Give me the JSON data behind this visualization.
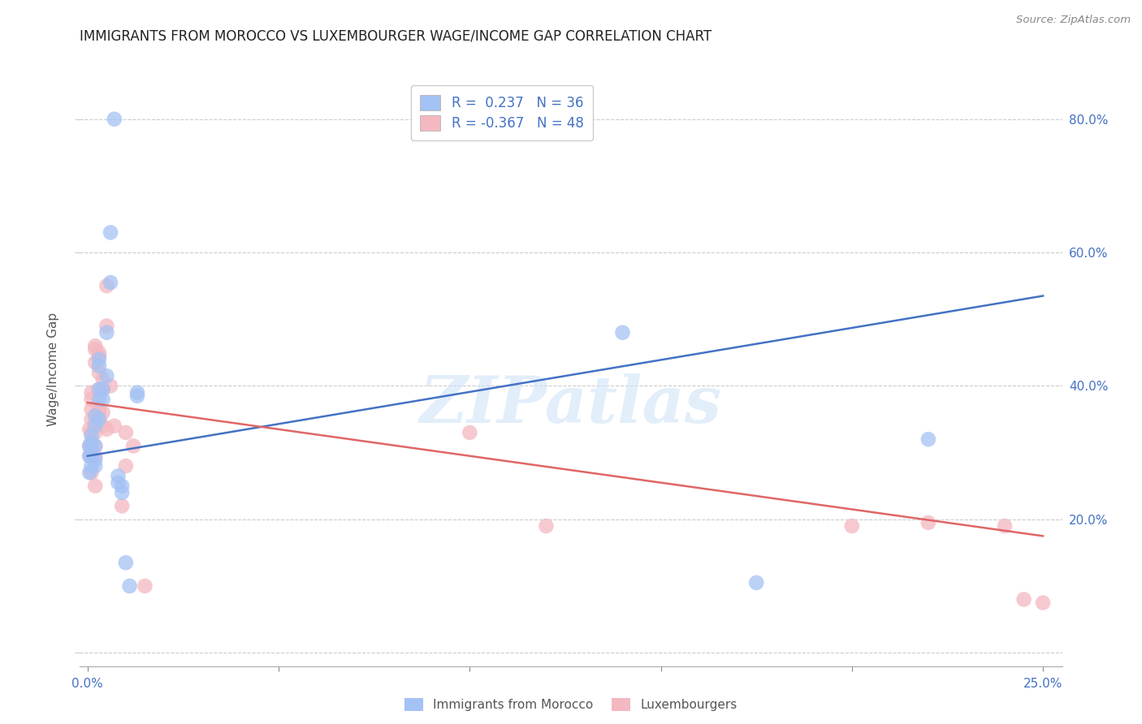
{
  "title": "IMMIGRANTS FROM MOROCCO VS LUXEMBOURGER WAGE/INCOME GAP CORRELATION CHART",
  "source": "Source: ZipAtlas.com",
  "ylabel": "Wage/Income Gap",
  "xlim": [
    -0.002,
    0.255
  ],
  "ylim": [
    -0.02,
    0.87
  ],
  "xticks": [
    0.0,
    0.05,
    0.1,
    0.15,
    0.2,
    0.25
  ],
  "xticklabels": [
    "0.0%",
    "",
    "",
    "",
    "",
    "25.0%"
  ],
  "yticks": [
    0.0,
    0.2,
    0.4,
    0.6,
    0.8
  ],
  "yticklabels": [
    "",
    "20.0%",
    "40.0%",
    "60.0%",
    "80.0%"
  ],
  "watermark": "ZIPatlas",
  "blue_color": "#a4c2f4",
  "pink_color": "#f4b8c1",
  "line_blue": "#4472c4",
  "line_pink": "#e06666",
  "tick_color": "#4472c4",
  "text_color": "#4472c4",
  "blue_scatter": [
    [
      0.0005,
      0.295
    ],
    [
      0.0005,
      0.27
    ],
    [
      0.0005,
      0.31
    ],
    [
      0.001,
      0.315
    ],
    [
      0.001,
      0.325
    ],
    [
      0.001,
      0.28
    ],
    [
      0.001,
      0.305
    ],
    [
      0.001,
      0.295
    ],
    [
      0.002,
      0.34
    ],
    [
      0.002,
      0.355
    ],
    [
      0.002,
      0.31
    ],
    [
      0.002,
      0.28
    ],
    [
      0.002,
      0.29
    ],
    [
      0.003,
      0.43
    ],
    [
      0.003,
      0.38
    ],
    [
      0.003,
      0.395
    ],
    [
      0.003,
      0.35
    ],
    [
      0.003,
      0.44
    ],
    [
      0.004,
      0.395
    ],
    [
      0.004,
      0.38
    ],
    [
      0.005,
      0.48
    ],
    [
      0.005,
      0.415
    ],
    [
      0.006,
      0.555
    ],
    [
      0.006,
      0.63
    ],
    [
      0.007,
      0.8
    ],
    [
      0.008,
      0.265
    ],
    [
      0.008,
      0.255
    ],
    [
      0.009,
      0.24
    ],
    [
      0.009,
      0.25
    ],
    [
      0.01,
      0.135
    ],
    [
      0.011,
      0.1
    ],
    [
      0.013,
      0.39
    ],
    [
      0.013,
      0.385
    ],
    [
      0.14,
      0.48
    ],
    [
      0.175,
      0.105
    ],
    [
      0.22,
      0.32
    ]
  ],
  "pink_scatter": [
    [
      0.0005,
      0.31
    ],
    [
      0.0005,
      0.295
    ],
    [
      0.0005,
      0.335
    ],
    [
      0.001,
      0.365
    ],
    [
      0.001,
      0.35
    ],
    [
      0.001,
      0.33
    ],
    [
      0.001,
      0.38
    ],
    [
      0.001,
      0.39
    ],
    [
      0.001,
      0.295
    ],
    [
      0.001,
      0.27
    ],
    [
      0.001,
      0.305
    ],
    [
      0.002,
      0.46
    ],
    [
      0.002,
      0.455
    ],
    [
      0.002,
      0.435
    ],
    [
      0.002,
      0.355
    ],
    [
      0.002,
      0.345
    ],
    [
      0.002,
      0.33
    ],
    [
      0.002,
      0.31
    ],
    [
      0.002,
      0.295
    ],
    [
      0.002,
      0.25
    ],
    [
      0.003,
      0.45
    ],
    [
      0.003,
      0.445
    ],
    [
      0.003,
      0.42
    ],
    [
      0.003,
      0.395
    ],
    [
      0.003,
      0.365
    ],
    [
      0.003,
      0.36
    ],
    [
      0.004,
      0.41
    ],
    [
      0.004,
      0.395
    ],
    [
      0.004,
      0.36
    ],
    [
      0.004,
      0.34
    ],
    [
      0.005,
      0.55
    ],
    [
      0.005,
      0.49
    ],
    [
      0.005,
      0.335
    ],
    [
      0.006,
      0.4
    ],
    [
      0.007,
      0.34
    ],
    [
      0.009,
      0.22
    ],
    [
      0.01,
      0.28
    ],
    [
      0.01,
      0.33
    ],
    [
      0.012,
      0.31
    ],
    [
      0.015,
      0.1
    ],
    [
      0.1,
      0.33
    ],
    [
      0.12,
      0.19
    ],
    [
      0.2,
      0.19
    ],
    [
      0.22,
      0.195
    ],
    [
      0.24,
      0.19
    ],
    [
      0.245,
      0.08
    ],
    [
      0.25,
      0.075
    ]
  ],
  "blue_line_x": [
    0.0,
    0.25
  ],
  "blue_line_y": [
    0.295,
    0.535
  ],
  "pink_line_x": [
    0.0,
    0.25
  ],
  "pink_line_y": [
    0.375,
    0.175
  ]
}
